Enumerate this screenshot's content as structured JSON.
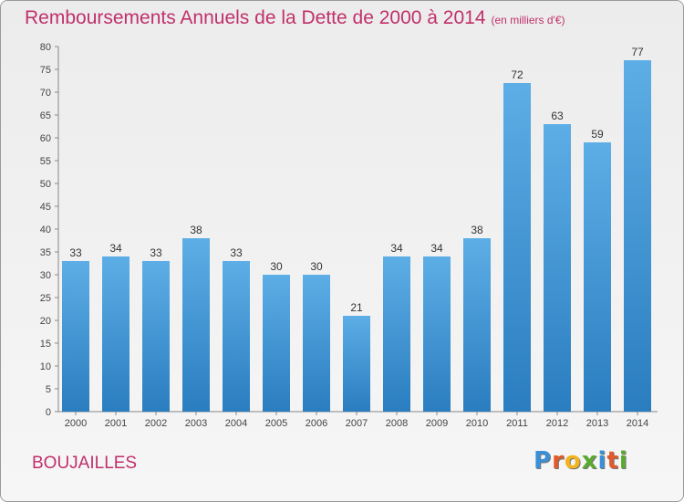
{
  "title": "Remboursements Annuels de la Dette de 2000 à 2014",
  "unit_label": "(en milliers d'€)",
  "commune": "BOUJAILLES",
  "logo_text": "Proxiti",
  "colors": {
    "title": "#c0306a",
    "bar_top": "#5daee6",
    "bar_bottom": "#2a7dbf"
  },
  "chart_data": {
    "type": "bar",
    "title": "Remboursements Annuels de la Dette de 2000 à 2014",
    "subtitle": "(en milliers d'€)",
    "xlabel": "",
    "ylabel": "",
    "categories": [
      "2000",
      "2001",
      "2002",
      "2003",
      "2004",
      "2005",
      "2006",
      "2007",
      "2008",
      "2009",
      "2010",
      "2011",
      "2012",
      "2013",
      "2014"
    ],
    "values": [
      33,
      34,
      33,
      38,
      33,
      30,
      30,
      21,
      34,
      34,
      38,
      72,
      63,
      59,
      77
    ],
    "data_labels": [
      "33",
      "34",
      "33",
      "38",
      "33",
      "30",
      "30",
      "21",
      "34",
      "34",
      "38",
      "72",
      "63",
      "59",
      "77"
    ],
    "ylim": [
      0,
      80
    ],
    "yticks": [
      0,
      5,
      10,
      15,
      20,
      25,
      30,
      35,
      40,
      45,
      50,
      55,
      60,
      65,
      70,
      75,
      80
    ],
    "grid": false,
    "legend": "none"
  }
}
